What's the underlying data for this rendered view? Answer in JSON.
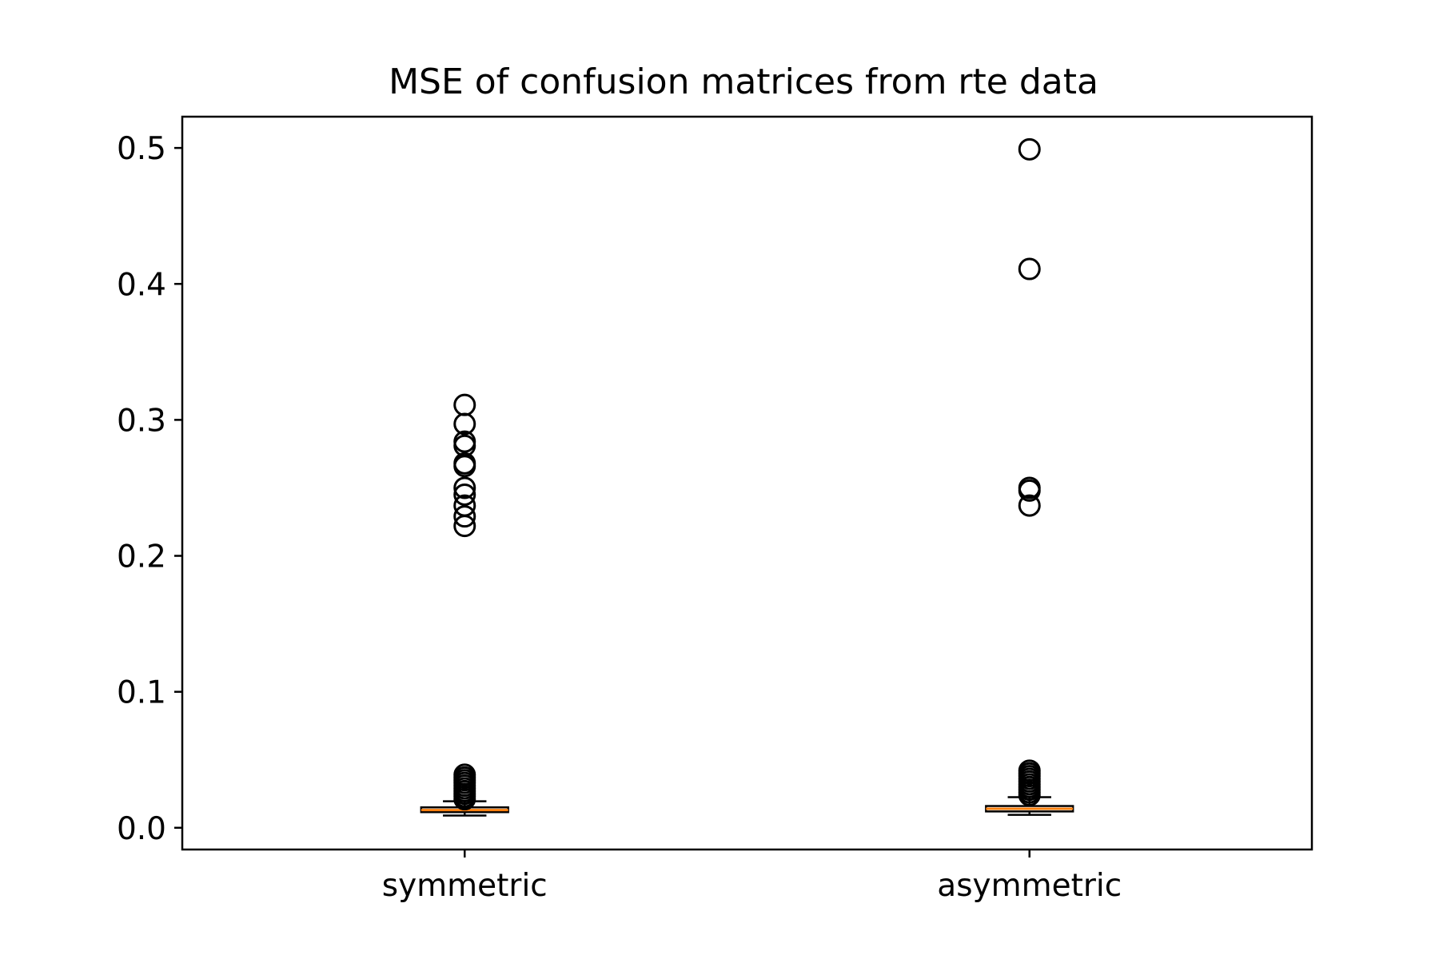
{
  "chart_data": {
    "type": "boxplot",
    "title": "MSE of confusion matrices from rte data",
    "xlabel": "",
    "ylabel": "",
    "categories": [
      "symmetric",
      "asymmetric"
    ],
    "ylim": [
      -0.016,
      0.523
    ],
    "yticks": [
      0.0,
      0.1,
      0.2,
      0.3,
      0.4,
      0.5
    ],
    "ytick_labels": [
      "0.0",
      "0.1",
      "0.2",
      "0.3",
      "0.4",
      "0.5"
    ],
    "grid": false,
    "legend": "none",
    "colors": {
      "median": "#ff7f0e",
      "box": "#000000",
      "flier": "#000000"
    },
    "series": [
      {
        "whisker_low": 0.009,
        "q1": 0.0115,
        "median": 0.013,
        "q3": 0.015,
        "whisker_high": 0.0195,
        "fliers": [
          0.021,
          0.023,
          0.025,
          0.027,
          0.029,
          0.031,
          0.033,
          0.035,
          0.037,
          0.039,
          0.222,
          0.229,
          0.237,
          0.245,
          0.25,
          0.266,
          0.268,
          0.281,
          0.284,
          0.297,
          0.311
        ]
      },
      {
        "whisker_low": 0.0095,
        "q1": 0.012,
        "median": 0.014,
        "q3": 0.016,
        "whisker_high": 0.0225,
        "fliers": [
          0.024,
          0.026,
          0.028,
          0.03,
          0.032,
          0.034,
          0.036,
          0.038,
          0.04,
          0.042,
          0.237,
          0.248,
          0.25,
          0.411,
          0.499
        ]
      }
    ]
  }
}
